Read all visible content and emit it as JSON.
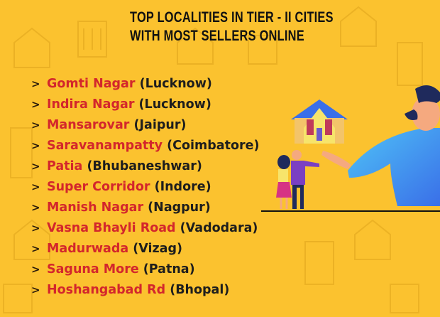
{
  "title": {
    "line1": "TOP LOCALITIES IN TIER - II CITIES",
    "line2": "WITH MOST SELLERS ONLINE"
  },
  "bullet_icon": "chevron-right-icon",
  "colors": {
    "background": "#FBC22F",
    "locality": "#D3262C",
    "city": "#1D1D1D"
  },
  "localities": [
    {
      "name": "Gomti Nagar",
      "city": "(Lucknow)"
    },
    {
      "name": "Indira Nagar",
      "city": "(Lucknow)"
    },
    {
      "name": "Mansarovar",
      "city": "(Jaipur)"
    },
    {
      "name": "Saravanampatty",
      "city": "(Coimbatore)"
    },
    {
      "name": "Patia",
      "city": "(Bhubaneshwar)"
    },
    {
      "name": "Super Corridor",
      "city": "(Indore)"
    },
    {
      "name": "Manish Nagar",
      "city": "(Nagpur)"
    },
    {
      "name": "Vasna Bhayli Road",
      "city": "(Vadodara)"
    },
    {
      "name": "Madurwada",
      "city": "(Vizag)"
    },
    {
      "name": "Saguna More",
      "city": "(Patna)"
    },
    {
      "name": "Hoshangabad Rd",
      "city": "(Bhopal)"
    }
  ]
}
